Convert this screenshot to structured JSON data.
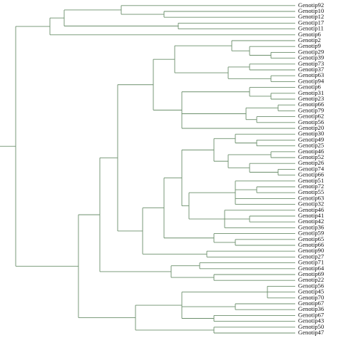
{
  "leaves": [
    "Genotip92",
    "Genotip10",
    "Genotip12",
    "Genotip17",
    "Genotip11",
    "Genotip6",
    "Genotip2",
    "Genotip9",
    "Genotip29",
    "Genotip39",
    "Genotip73",
    "Genotip37",
    "Genotip63",
    "Genotip94",
    "Genotip6",
    "Genotip31",
    "Genotip23",
    "Genotip66",
    "Genotip79",
    "Genotip62",
    "Genotip56",
    "Genotip20",
    "Genotip30",
    "Genotip49",
    "Genotip25",
    "Genotip46",
    "Genotip52",
    "Genotip26",
    "Genotip74",
    "Genotip66",
    "Genotip51",
    "Genotip72",
    "Genotip55",
    "Genotip63",
    "Genotip32",
    "Genotip46",
    "Genotip41",
    "Genotip42",
    "Genotip36",
    "Genotip59",
    "Genotip65",
    "Genotip66",
    "Genotip90",
    "Genotip27",
    "Genotip71",
    "Genotip64",
    "Genotip69",
    "Genotip22",
    "Genotip56",
    "Genotip45",
    "Genotip70",
    "Genotip67",
    "Genotip36",
    "Genotip67",
    "Genotip43",
    "Genotip50",
    "Genotip47"
  ]
}
